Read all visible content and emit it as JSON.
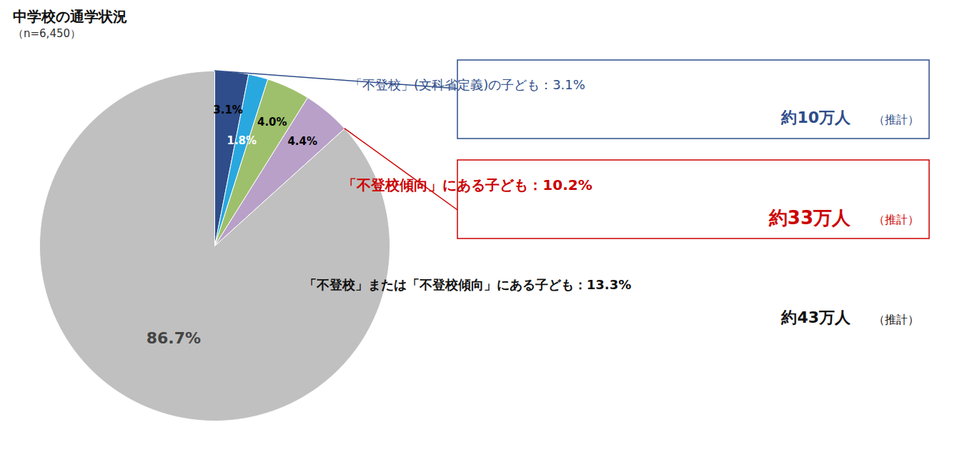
{
  "chart_data": {
    "type": "pie",
    "title": "中学校の通学状況",
    "subtitle": "（n=6,450）",
    "values": [
      3.1,
      1.8,
      4.0,
      4.4,
      86.7
    ],
    "value_labels": [
      "3.1%",
      "1.8%",
      "4.0%",
      "4.4%",
      "86.7%"
    ],
    "colors": [
      "#2e4d8a",
      "#29a8e0",
      "#9ec06c",
      "#b8a0c8",
      "#c0c0c0"
    ],
    "data_labels": true,
    "annotations": [
      {
        "text": "「不登校」(文科省定義)の子ども：3.1%",
        "value": "約10万人",
        "note": "（推計）",
        "color": "#2e4d8a"
      },
      {
        "text": "「不登校傾向」にある子ども：10.2%",
        "value": "約33万人",
        "note": "（推計）",
        "color": "#cc0000"
      },
      {
        "text": "「不登校」または「不登校傾向」にある子ども：13.3%",
        "value": "約43万人",
        "note": "（推計）"
      }
    ]
  }
}
